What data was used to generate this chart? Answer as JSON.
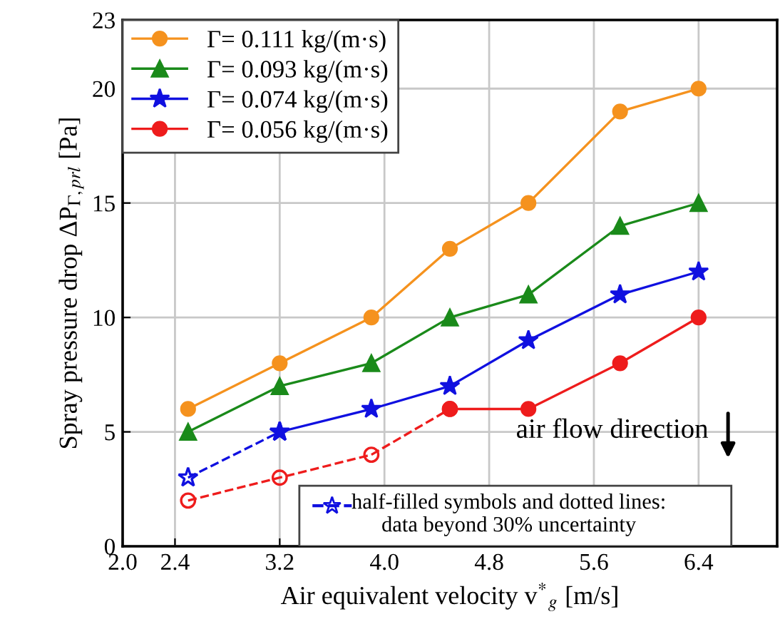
{
  "chart_data": {
    "type": "line",
    "xlabel": "Air equivalent velocity v$^{*}$$_{g}$ [m/s]",
    "ylabel": "Spray pressure drop ΔP$_{Γ,prl}$ [Pa]",
    "x": [
      2.5,
      3.2,
      3.9,
      4.5,
      5.1,
      5.8,
      6.4
    ],
    "series": [
      {
        "name": "Γ= 0.111 kg/(m·s)",
        "color": "#f5921e",
        "marker": "circle",
        "values": [
          6,
          8,
          10,
          13,
          15,
          19,
          20
        ]
      },
      {
        "name": "Γ= 0.093 kg/(m·s)",
        "color": "#1a8a1a",
        "marker": "triangle",
        "values": [
          5,
          7,
          8,
          10,
          11,
          14,
          15
        ]
      },
      {
        "name": "Γ= 0.074 kg/(m·s)",
        "color": "#1010e0",
        "marker": "star",
        "x": [
          3.2,
          3.9,
          4.5,
          5.1,
          5.8,
          6.4
        ],
        "values": [
          5,
          6,
          7,
          9,
          11,
          12
        ]
      },
      {
        "name": "Γ= 0.056 kg/(m·s)",
        "color": "#ee1c1c",
        "marker": "circle",
        "x": [
          4.5,
          5.1,
          5.8,
          6.4
        ],
        "values": [
          6,
          6,
          8,
          10
        ]
      },
      {
        "color": "#1010e0",
        "marker": "star",
        "line_style": "dashed",
        "x": [
          2.5,
          3.2
        ],
        "values": [
          3,
          5
        ]
      },
      {
        "color": "#ee1c1c",
        "marker": "circle",
        "line_style": "dashed",
        "x": [
          2.5,
          3.2,
          3.9,
          4.5
        ],
        "values": [
          2,
          3,
          4,
          6
        ]
      }
    ],
    "annotations": [
      "air flow direction",
      "half-filled symbols and dotted lines:\ndata beyond 30% uncertainty"
    ],
    "xlim": [
      2.0,
      7.0
    ],
    "xticks": [
      {
        "value": 2,
        "label": "2.0"
      },
      2.4,
      3.2,
      {
        "value": 4,
        "label": "4.0"
      },
      4.8,
      5.6,
      6.4
    ],
    "ylim": [
      0,
      23
    ],
    "yticks": [
      0,
      5,
      10,
      15,
      20,
      23
    ],
    "grid": true,
    "legend": "top left"
  }
}
